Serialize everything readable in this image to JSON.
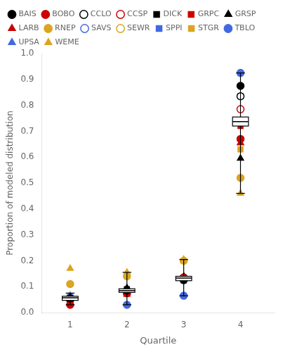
{
  "chart_data": {
    "type": "scatter",
    "xlabel": "Quartile",
    "ylabel": "Proportion of modeled distribution",
    "x": [
      1,
      2,
      3,
      4
    ],
    "xlim": [
      0.5,
      4.6
    ],
    "ylim": [
      0,
      1.0
    ],
    "xticks": [
      1,
      2,
      3,
      4
    ],
    "yticks": [
      {
        "value": 0,
        "label": "0.0"
      },
      0.1,
      0.2,
      0.3,
      0.4,
      0.5,
      0.6,
      0.7,
      0.8,
      0.9,
      {
        "value": 1,
        "label": "1.0"
      }
    ],
    "grid": false,
    "legend": "upper left",
    "series": [
      {
        "name": "BAIS",
        "color": "#000000",
        "marker": "circle",
        "values": [
          0.055,
          0.085,
          0.125,
          0.875
        ]
      },
      {
        "name": "BOBO",
        "color": "#cc0000",
        "marker": "circle",
        "values": [
          0.03,
          0.075,
          0.135,
          0.67
        ]
      },
      {
        "name": "CCLO",
        "color": "#000000",
        "marker": "open_circle",
        "values": [
          0.05,
          0.082,
          0.135,
          0.835
        ]
      },
      {
        "name": "CCSP",
        "color": "#cc0000",
        "marker": "open_circle",
        "values": [
          0.05,
          0.075,
          0.135,
          0.785
        ]
      },
      {
        "name": "DICK",
        "color": "#000000",
        "marker": "square",
        "values": [
          0.055,
          0.09,
          0.125,
          0.835
        ]
      },
      {
        "name": "GRPC",
        "color": "#cc0000",
        "marker": "square",
        "values": [
          0.04,
          0.085,
          0.135,
          0.72
        ]
      },
      {
        "name": "GRSP",
        "color": "#000000",
        "marker": "triangle",
        "values": [
          0.06,
          0.095,
          0.14,
          0.595
        ]
      },
      {
        "name": "LARB",
        "color": "#cc0000",
        "marker": "triangle",
        "values": [
          0.04,
          0.07,
          0.13,
          0.655
        ]
      },
      {
        "name": "RNEP",
        "color": "#DAA520",
        "marker": "circle",
        "values": [
          0.11,
          0.14,
          0.2,
          0.52
        ]
      },
      {
        "name": "SAVS",
        "color": "#4169E1",
        "marker": "open_circle",
        "values": [
          0.055,
          0.08,
          0.135,
          0.735
        ]
      },
      {
        "name": "SEWR",
        "color": "#DAA520",
        "marker": "open_circle",
        "values": [
          0.055,
          0.085,
          0.13,
          0.735
        ]
      },
      {
        "name": "SPPI",
        "color": "#4169E1",
        "marker": "square",
        "values": [
          0.055,
          0.085,
          0.135,
          0.735
        ]
      },
      {
        "name": "STGR",
        "color": "#DAA520",
        "marker": "square",
        "values": [
          0.055,
          0.085,
          0.125,
          0.63
        ]
      },
      {
        "name": "TBLO",
        "color": "#4169E1",
        "marker": "circle",
        "values": [
          0.06,
          0.03,
          0.065,
          0.925
        ]
      },
      {
        "name": "UPSA",
        "color": "#4169E1",
        "marker": "triangle",
        "values": [
          0.065,
          0.09,
          0.13,
          0.655
        ]
      },
      {
        "name": "WEME",
        "color": "#DAA520",
        "marker": "triangle",
        "values": [
          0.17,
          0.155,
          0.205,
          0.46
        ]
      }
    ],
    "boxplots": [
      {
        "x": 1,
        "median": 0.057,
        "q1": 0.047,
        "q3": 0.063,
        "whisker_lo": 0.03,
        "whisker_hi": 0.075
      },
      {
        "x": 2,
        "median": 0.085,
        "q1": 0.078,
        "q3": 0.092,
        "whisker_lo": 0.03,
        "whisker_hi": 0.155
      },
      {
        "x": 3,
        "median": 0.133,
        "q1": 0.123,
        "q3": 0.14,
        "whisker_lo": 0.065,
        "whisker_hi": 0.205
      },
      {
        "x": 4,
        "median": 0.737,
        "q1": 0.72,
        "q3": 0.755,
        "whisker_lo": 0.46,
        "whisker_hi": 0.925
      }
    ]
  }
}
